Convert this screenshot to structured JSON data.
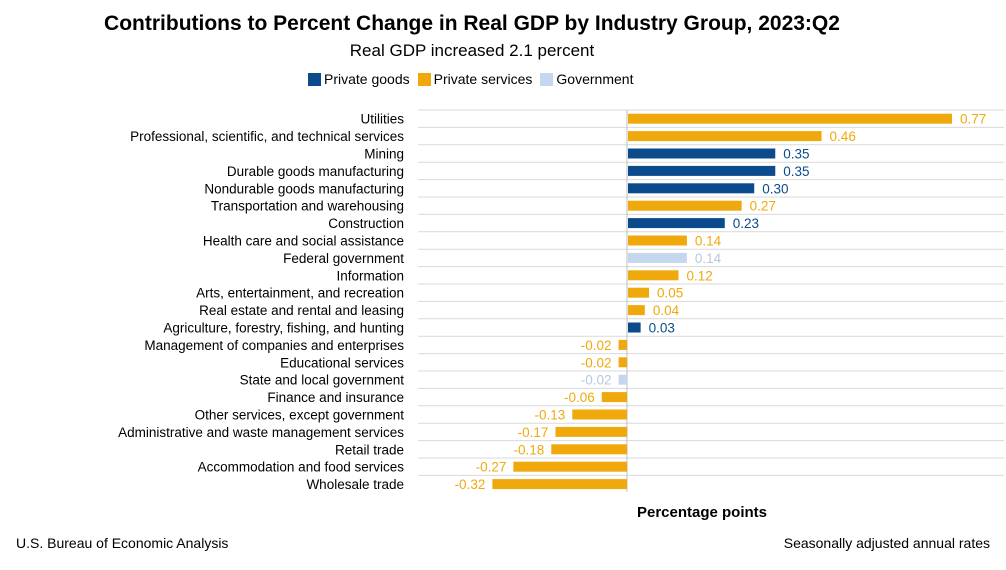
{
  "header": {
    "title": "Contributions to Percent Change in Real GDP by Industry Group, 2023:Q2",
    "subtitle": "Real GDP increased 2.1 percent"
  },
  "footer": {
    "source": "U.S. Bureau of Economic Analysis",
    "note": "Seasonally adjusted annual rates"
  },
  "colors": {
    "Private goods": "#0b4b8c",
    "Private services": "#f0a90d",
    "Government": "#c5d7ee"
  },
  "chart_data": {
    "type": "bar",
    "orientation": "horizontal",
    "title": "Contributions to Percent Change in Real GDP by Industry Group, 2023:Q2",
    "subtitle": "Real GDP increased 2.1 percent",
    "xlabel": "Percentage points",
    "ylabel": "",
    "xlim": [
      -0.5,
      0.9
    ],
    "grid": true,
    "legend_position": "top",
    "legend": [
      "Private goods",
      "Private services",
      "Government"
    ],
    "categories": [
      "Utilities",
      "Professional, scientific, and technical services",
      "Mining",
      "Durable goods manufacturing",
      "Nondurable goods manufacturing",
      "Transportation and warehousing",
      "Construction",
      "Health care and social assistance",
      "Federal government",
      "Information",
      "Arts, entertainment, and recreation",
      "Real estate and rental and leasing",
      "Agriculture, forestry, fishing, and hunting",
      "Management of companies and enterprises",
      "Educational services",
      "State and local government",
      "Finance and insurance",
      "Other services, except government",
      "Administrative and waste management services",
      "Retail trade",
      "Accommodation and food services",
      "Wholesale trade"
    ],
    "values": [
      0.77,
      0.46,
      0.35,
      0.35,
      0.3,
      0.27,
      0.23,
      0.14,
      0.14,
      0.12,
      0.05,
      0.04,
      0.03,
      -0.02,
      -0.02,
      -0.02,
      -0.06,
      -0.13,
      -0.17,
      -0.18,
      -0.27,
      -0.32
    ],
    "value_labels": [
      "0.77",
      "0.46",
      "0.35",
      "0.35",
      "0.30",
      "0.27",
      "0.23",
      "0.14",
      "0.14",
      "0.12",
      "0.05",
      "0.04",
      "0.03",
      "-0.02",
      "-0.02",
      "-0.02",
      "-0.06",
      "-0.13",
      "-0.17",
      "-0.18",
      "-0.27",
      "-0.32"
    ],
    "groups": [
      "Private services",
      "Private services",
      "Private goods",
      "Private goods",
      "Private goods",
      "Private services",
      "Private goods",
      "Private services",
      "Government",
      "Private services",
      "Private services",
      "Private services",
      "Private goods",
      "Private services",
      "Private services",
      "Government",
      "Private services",
      "Private services",
      "Private services",
      "Private services",
      "Private services",
      "Private services"
    ]
  }
}
